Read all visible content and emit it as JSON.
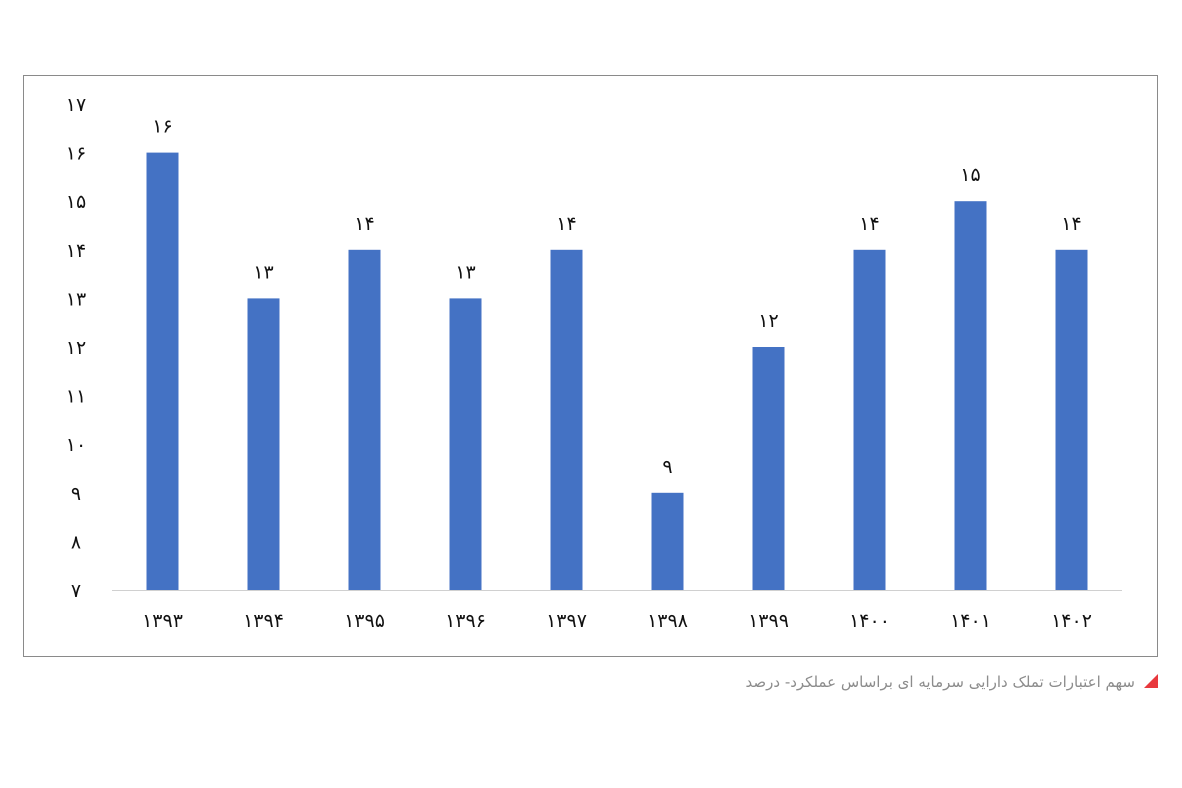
{
  "chart_data": {
    "type": "bar",
    "categories": [
      "۱۳۹۳",
      "۱۳۹۴",
      "۱۳۹۵",
      "۱۳۹۶",
      "۱۳۹۷",
      "۱۳۹۸",
      "۱۳۹۹",
      "۱۴۰۰",
      "۱۴۰۱",
      "۱۴۰۲"
    ],
    "values": [
      16,
      13,
      14,
      13,
      14,
      9,
      12,
      14,
      15,
      14
    ],
    "value_labels": [
      "۱۶",
      "۱۳",
      "۱۴",
      "۱۳",
      "۱۴",
      "۹",
      "۱۲",
      "۱۴",
      "۱۵",
      "۱۴"
    ],
    "ylim": [
      7,
      17
    ],
    "yticks": [
      7,
      8,
      9,
      10,
      11,
      12,
      13,
      14,
      15,
      16,
      17
    ],
    "ytick_labels": [
      "۷",
      "۸",
      "۹",
      "۱۰",
      "۱۱",
      "۱۲",
      "۱۳",
      "۱۴",
      "۱۵",
      "۱۶",
      "۱۷"
    ],
    "bar_color": "#4472C4",
    "grid": false,
    "title": "",
    "xlabel": "",
    "ylabel": ""
  },
  "caption": {
    "text": "سهم اعتبارات تملک دارایی سرمایه ای براساس عملکرد- درصد",
    "marker_color": "#E8383D"
  }
}
